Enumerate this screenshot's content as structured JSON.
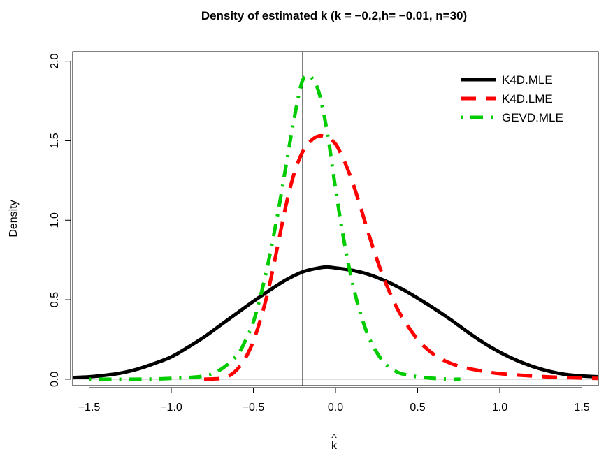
{
  "chart_data": {
    "type": "line",
    "title": "Density of estimated k (k = −0.2,h= −0.01, n=30)",
    "xlabel": "k",
    "xlabel_accent": "^",
    "ylabel": "Density",
    "xlim": [
      -1.6,
      1.6
    ],
    "ylim": [
      -0.04,
      2.06
    ],
    "x_ticks": [
      -1.5,
      -1.0,
      -0.5,
      0.0,
      0.5,
      1.0,
      1.5
    ],
    "x_tick_labels": [
      "−1.5",
      "−1.0",
      "−0.5",
      "0.0",
      "0.5",
      "1.0",
      "1.5"
    ],
    "y_ticks": [
      0.0,
      0.5,
      1.0,
      1.5,
      2.0
    ],
    "y_tick_labels": [
      "0.0",
      "0.5",
      "1.0",
      "1.5",
      "2.0"
    ],
    "reference_lines": {
      "vertical_x": -0.2,
      "horizontal_y": 0.0
    },
    "legend_position": "top-right",
    "grid": false,
    "series": [
      {
        "name": "K4D.MLE",
        "color": "#000000",
        "line_style": "solid",
        "x": [
          -1.6,
          -1.5,
          -1.4,
          -1.3,
          -1.2,
          -1.1,
          -1.0,
          -0.9,
          -0.8,
          -0.7,
          -0.6,
          -0.5,
          -0.4,
          -0.3,
          -0.2,
          -0.1,
          -0.05,
          0.0,
          0.1,
          0.2,
          0.3,
          0.4,
          0.5,
          0.6,
          0.7,
          0.8,
          0.9,
          1.0,
          1.1,
          1.2,
          1.3,
          1.4,
          1.5,
          1.6
        ],
        "y": [
          0.01,
          0.015,
          0.025,
          0.04,
          0.065,
          0.1,
          0.14,
          0.2,
          0.265,
          0.34,
          0.415,
          0.49,
          0.56,
          0.625,
          0.675,
          0.7,
          0.705,
          0.7,
          0.685,
          0.66,
          0.62,
          0.57,
          0.51,
          0.445,
          0.375,
          0.3,
          0.23,
          0.17,
          0.12,
          0.08,
          0.05,
          0.03,
          0.02,
          0.015
        ]
      },
      {
        "name": "K4D.LME",
        "color": "#ff0000",
        "line_style": "dashed",
        "x": [
          -0.8,
          -0.7,
          -0.65,
          -0.6,
          -0.55,
          -0.5,
          -0.45,
          -0.4,
          -0.35,
          -0.3,
          -0.25,
          -0.2,
          -0.15,
          -0.1,
          -0.05,
          0.0,
          0.05,
          0.1,
          0.15,
          0.2,
          0.25,
          0.3,
          0.35,
          0.4,
          0.5,
          0.6,
          0.7,
          0.8,
          0.9,
          1.0,
          1.2,
          1.4,
          1.6
        ],
        "y": [
          0.0,
          0.005,
          0.02,
          0.06,
          0.13,
          0.24,
          0.4,
          0.6,
          0.85,
          1.1,
          1.3,
          1.43,
          1.5,
          1.53,
          1.52,
          1.48,
          1.38,
          1.25,
          1.09,
          0.92,
          0.76,
          0.62,
          0.5,
          0.4,
          0.25,
          0.155,
          0.1,
          0.07,
          0.05,
          0.035,
          0.02,
          0.01,
          0.005
        ]
      },
      {
        "name": "GEVD.MLE",
        "color": "#00cc00",
        "line_style": "dotdash",
        "x": [
          -1.5,
          -1.2,
          -1.0,
          -0.8,
          -0.7,
          -0.6,
          -0.55,
          -0.5,
          -0.45,
          -0.4,
          -0.35,
          -0.3,
          -0.25,
          -0.2,
          -0.15,
          -0.1,
          -0.05,
          0.0,
          0.05,
          0.1,
          0.15,
          0.2,
          0.25,
          0.3,
          0.35,
          0.4,
          0.5,
          0.6,
          0.7,
          0.76
        ],
        "y": [
          0.0,
          0.0,
          0.005,
          0.02,
          0.06,
          0.15,
          0.24,
          0.36,
          0.55,
          0.78,
          1.05,
          1.35,
          1.65,
          1.88,
          1.9,
          1.8,
          1.55,
          1.2,
          0.88,
          0.62,
          0.42,
          0.27,
          0.17,
          0.1,
          0.06,
          0.035,
          0.015,
          0.005,
          0.0,
          0.0
        ]
      }
    ]
  }
}
